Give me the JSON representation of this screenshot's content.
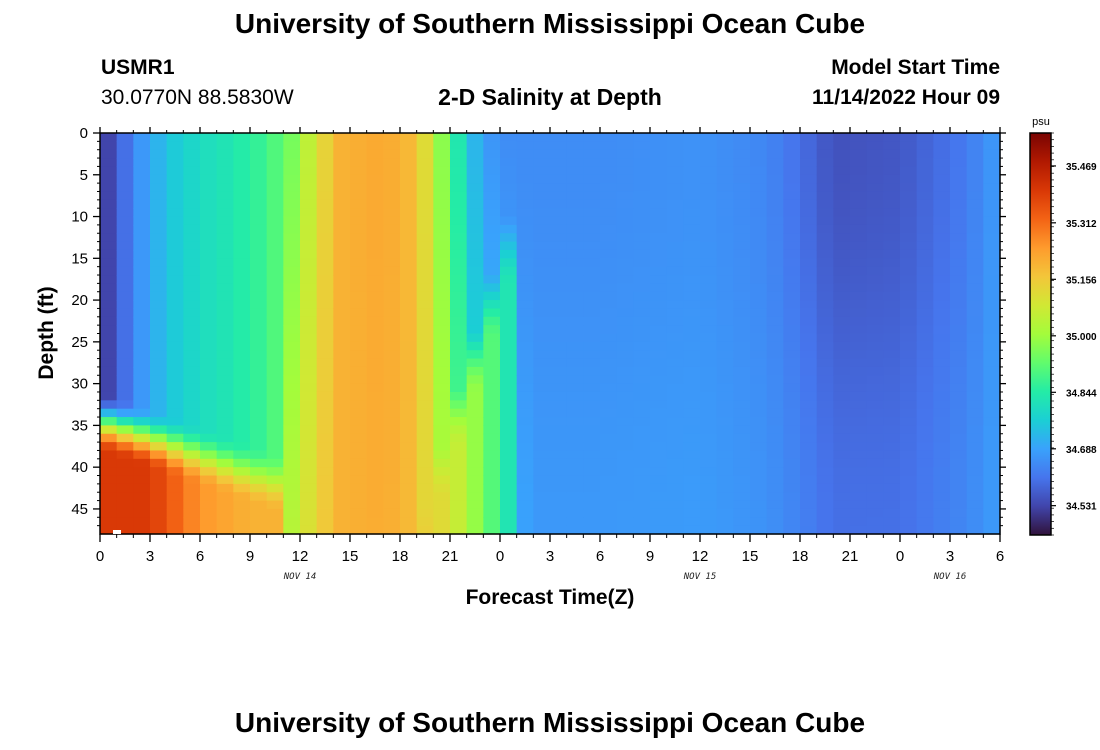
{
  "header": {
    "title": "University of Southern Mississippi Ocean Cube",
    "station_id": "USMR1",
    "coordinates": "30.0770N  88.5830W",
    "subtitle": "2-D Salinity at Depth",
    "model_start_label": "Model Start Time",
    "model_start_value": "11/14/2022 Hour 09"
  },
  "footer": {
    "title": "University of Southern Mississippi Ocean Cube"
  },
  "chart_data": {
    "type": "heatmap",
    "title": "2-D Salinity at Depth",
    "xlabel": "Forecast Time(Z)",
    "ylabel": "Depth (ft)",
    "x_tick_labels": [
      "0",
      "3",
      "6",
      "9",
      "12",
      "15",
      "18",
      "21",
      "0",
      "3",
      "6",
      "9",
      "12",
      "15",
      "18",
      "21",
      "0",
      "3",
      "6"
    ],
    "x_range_hours": [
      0,
      54
    ],
    "date_labels": [
      {
        "text": "NOV 14",
        "hour": 12
      },
      {
        "text": "NOV 15",
        "hour": 36
      },
      {
        "text": "NOV 16",
        "hour": 51
      }
    ],
    "y_ticks": [
      0,
      5,
      10,
      15,
      20,
      25,
      30,
      35,
      40,
      45
    ],
    "y_range": [
      0,
      48
    ],
    "y_inverted": true,
    "colorbar": {
      "unit": "psu",
      "ticks": [
        35.469,
        35.312,
        35.156,
        35.0,
        34.844,
        34.688,
        34.531
      ],
      "tick_labels": [
        "35.469",
        "35.312",
        "35.156",
        "35.000",
        "34.844",
        "34.688",
        "34.531"
      ],
      "range": [
        34.45,
        35.56
      ],
      "colors": [
        "#30123b",
        "#4145ab",
        "#4675ed",
        "#39a2fc",
        "#1bcfd4",
        "#24eca6",
        "#61fc6c",
        "#a4fc3b",
        "#d1e834",
        "#f3c63a",
        "#fe9b2d",
        "#f36315",
        "#d93806",
        "#b11901",
        "#7a0402"
      ]
    },
    "surface_salinity_by_hour": [
      {
        "hour": 0,
        "value": 34.5
      },
      {
        "hour": 1,
        "value": 34.56
      },
      {
        "hour": 2,
        "value": 34.64
      },
      {
        "hour": 3,
        "value": 34.7
      },
      {
        "hour": 4.5,
        "value": 34.76
      },
      {
        "hour": 6,
        "value": 34.8
      },
      {
        "hour": 8,
        "value": 34.83
      },
      {
        "hour": 10,
        "value": 34.88
      },
      {
        "hour": 11.5,
        "value": 34.95
      },
      {
        "hour": 13,
        "value": 35.1
      },
      {
        "hour": 14.5,
        "value": 35.2
      },
      {
        "hour": 17,
        "value": 35.22
      },
      {
        "hour": 19,
        "value": 35.18
      },
      {
        "hour": 20,
        "value": 35.05
      },
      {
        "hour": 21,
        "value": 34.9
      },
      {
        "hour": 22,
        "value": 34.76
      },
      {
        "hour": 23,
        "value": 34.68
      },
      {
        "hour": 24,
        "value": 34.65
      },
      {
        "hour": 30,
        "value": 34.65
      },
      {
        "hour": 36,
        "value": 34.66
      },
      {
        "hour": 40,
        "value": 34.64
      },
      {
        "hour": 42,
        "value": 34.6
      },
      {
        "hour": 44,
        "value": 34.55
      },
      {
        "hour": 48,
        "value": 34.56
      },
      {
        "hour": 52,
        "value": 34.62
      },
      {
        "hour": 54,
        "value": 34.68
      }
    ],
    "bottom_salinity_by_hour": [
      {
        "hour": 0,
        "value": 35.4
      },
      {
        "hour": 3,
        "value": 35.4
      },
      {
        "hour": 6,
        "value": 35.25
      },
      {
        "hour": 9,
        "value": 35.2
      },
      {
        "hour": 12,
        "value": 35.2
      },
      {
        "hour": 15,
        "value": 35.2
      },
      {
        "hour": 18,
        "value": 35.2
      },
      {
        "hour": 21,
        "value": 35.1
      },
      {
        "hour": 23,
        "value": 34.95
      },
      {
        "hour": 26,
        "value": 34.7
      },
      {
        "hour": 30,
        "value": 34.7
      },
      {
        "hour": 36,
        "value": 34.7
      },
      {
        "hour": 42,
        "value": 34.68
      },
      {
        "hour": 48,
        "value": 34.66
      },
      {
        "hour": 54,
        "value": 34.68
      }
    ]
  }
}
